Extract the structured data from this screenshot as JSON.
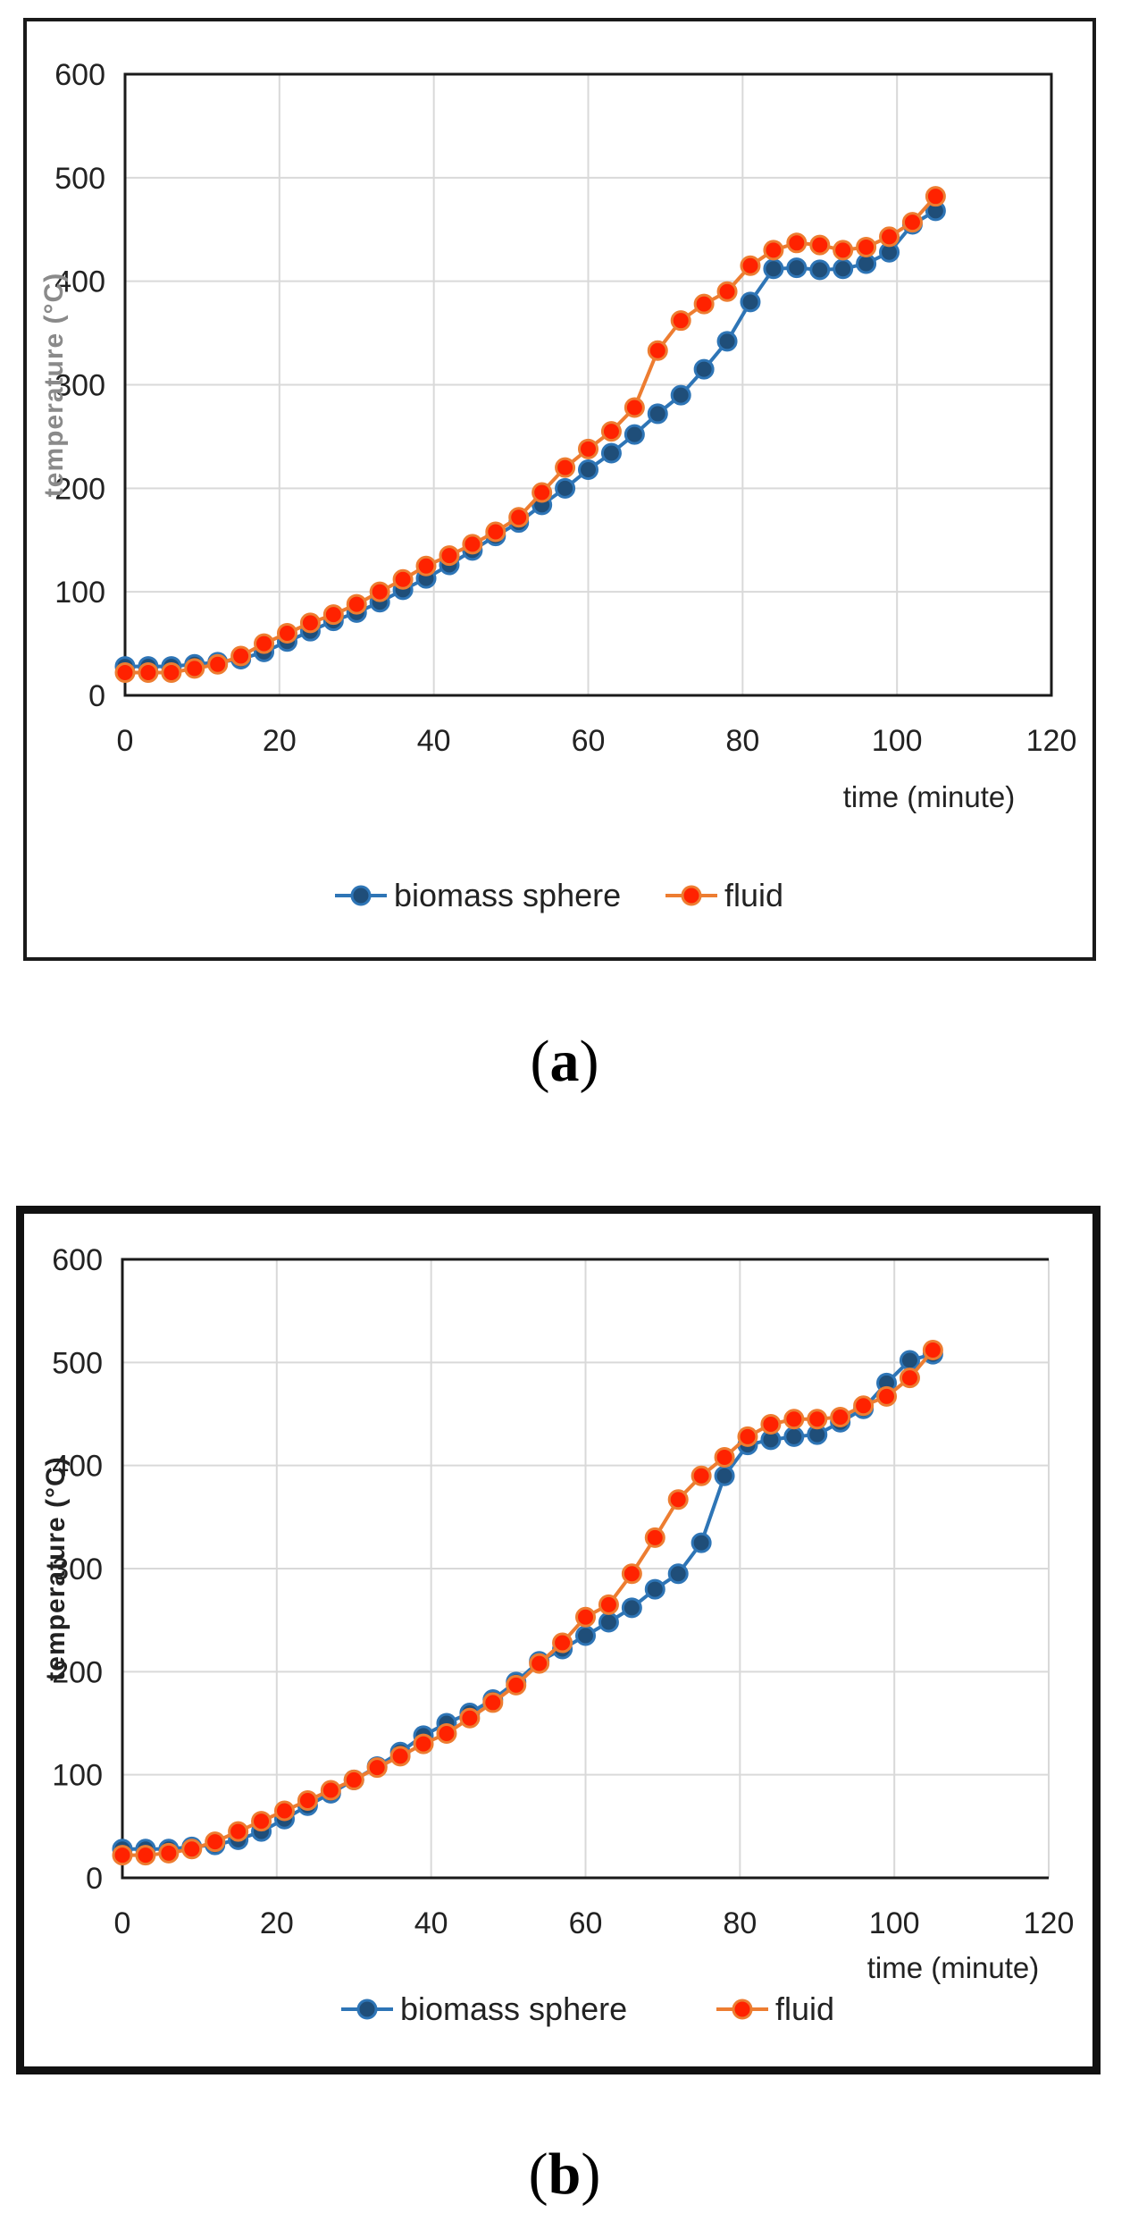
{
  "captions": {
    "a": "a",
    "b": "b"
  },
  "chart_data": [
    {
      "panel": "a",
      "type": "line",
      "title": "",
      "xlabel": "time (minute)",
      "ylabel": "temperature (°C)",
      "xlim": [
        0,
        120
      ],
      "ylim": [
        0,
        600
      ],
      "xticks": [
        0,
        20,
        40,
        60,
        80,
        100,
        120
      ],
      "yticks": [
        0,
        100,
        200,
        300,
        400,
        500,
        600
      ],
      "grid": true,
      "legend_position": "bottom",
      "series": [
        {
          "name": "biomass sphere",
          "color": "#2E75B6",
          "marker_color": "#1F4E79",
          "x": [
            0,
            3,
            6,
            9,
            12,
            15,
            18,
            21,
            24,
            27,
            30,
            33,
            36,
            39,
            42,
            45,
            48,
            51,
            54,
            57,
            60,
            63,
            66,
            69,
            72,
            75,
            78,
            81,
            84,
            87,
            90,
            93,
            96,
            99,
            102,
            105
          ],
          "y": [
            28,
            28,
            28,
            30,
            32,
            35,
            42,
            52,
            62,
            72,
            80,
            90,
            102,
            113,
            126,
            140,
            154,
            167,
            184,
            200,
            218,
            234,
            252,
            272,
            290,
            315,
            342,
            380,
            412,
            413,
            411,
            412,
            417,
            428,
            455,
            468
          ]
        },
        {
          "name": "fluid",
          "color": "#ED7D31",
          "marker_color": "#FF2200",
          "x": [
            0,
            3,
            6,
            9,
            12,
            15,
            18,
            21,
            24,
            27,
            30,
            33,
            36,
            39,
            42,
            45,
            48,
            51,
            54,
            57,
            60,
            63,
            66,
            69,
            72,
            75,
            78,
            81,
            84,
            87,
            90,
            93,
            96,
            99,
            102,
            105
          ],
          "y": [
            22,
            22,
            22,
            26,
            30,
            38,
            50,
            60,
            70,
            78,
            88,
            100,
            112,
            125,
            135,
            146,
            158,
            172,
            196,
            220,
            238,
            255,
            278,
            333,
            362,
            378,
            390,
            415,
            430,
            437,
            435,
            430,
            433,
            443,
            457,
            482
          ]
        }
      ]
    },
    {
      "panel": "b",
      "type": "line",
      "title": "",
      "xlabel": "time (minute)",
      "ylabel": "temperature (°C)",
      "xlim": [
        0,
        120
      ],
      "ylim": [
        0,
        600
      ],
      "xticks": [
        0,
        20,
        40,
        60,
        80,
        100,
        120
      ],
      "yticks": [
        0,
        100,
        200,
        300,
        400,
        500,
        600
      ],
      "grid": true,
      "legend_position": "bottom",
      "series": [
        {
          "name": "biomass sphere",
          "color": "#2E75B6",
          "marker_color": "#1F4E79",
          "x": [
            0,
            3,
            6,
            9,
            12,
            15,
            18,
            21,
            24,
            27,
            30,
            33,
            36,
            39,
            42,
            45,
            48,
            51,
            54,
            57,
            60,
            63,
            66,
            69,
            72,
            75,
            78,
            81,
            84,
            87,
            90,
            93,
            96,
            99,
            102,
            105
          ],
          "y": [
            28,
            28,
            28,
            30,
            32,
            37,
            45,
            57,
            70,
            82,
            95,
            108,
            122,
            138,
            150,
            160,
            173,
            190,
            210,
            222,
            235,
            248,
            262,
            280,
            295,
            325,
            390,
            420,
            425,
            428,
            430,
            442,
            455,
            480,
            502,
            508
          ]
        },
        {
          "name": "fluid",
          "color": "#ED7D31",
          "marker_color": "#FF2200",
          "x": [
            0,
            3,
            6,
            9,
            12,
            15,
            18,
            21,
            24,
            27,
            30,
            33,
            36,
            39,
            42,
            45,
            48,
            51,
            54,
            57,
            60,
            63,
            66,
            69,
            72,
            75,
            78,
            81,
            84,
            87,
            90,
            93,
            96,
            99,
            102,
            105
          ],
          "y": [
            22,
            22,
            24,
            28,
            35,
            45,
            55,
            65,
            75,
            85,
            95,
            107,
            118,
            130,
            140,
            155,
            170,
            187,
            208,
            228,
            253,
            265,
            295,
            330,
            367,
            390,
            408,
            428,
            440,
            445,
            445,
            447,
            458,
            467,
            485,
            512
          ]
        }
      ]
    }
  ]
}
